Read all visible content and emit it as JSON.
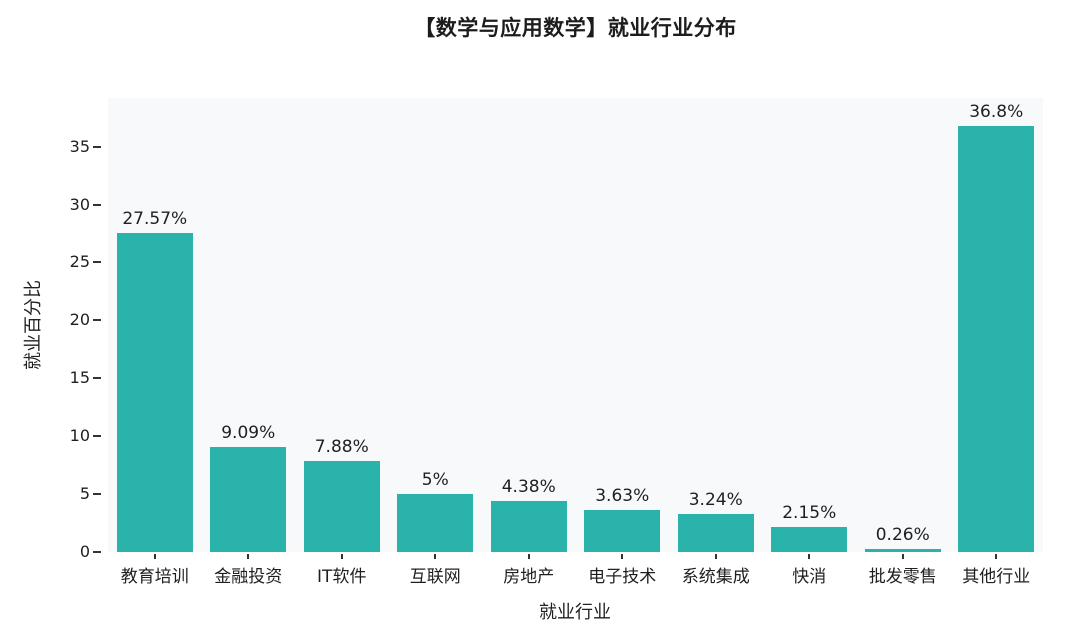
{
  "title": "【数学与应用数学】就业行业分布",
  "chart_data": {
    "type": "bar",
    "title": "【数学与应用数学】就业行业分布",
    "xlabel": "就业行业",
    "ylabel": "就业百分比",
    "categories": [
      "教育培训",
      "金融投资",
      "IT软件",
      "互联网",
      "房地产",
      "电子技术",
      "系统集成",
      "快消",
      "批发零售",
      "其他行业"
    ],
    "values": [
      27.57,
      9.09,
      7.88,
      5,
      4.38,
      3.63,
      3.24,
      2.15,
      0.26,
      36.8
    ],
    "value_labels": [
      "27.57%",
      "9.09%",
      "7.88%",
      "5%",
      "4.38%",
      "3.63%",
      "3.24%",
      "2.15%",
      "0.26%",
      "36.8%"
    ],
    "yticks": [
      0,
      5,
      10,
      15,
      20,
      25,
      30,
      35
    ],
    "ylim": [
      0,
      39.2
    ],
    "grid": false,
    "legend": "none",
    "bar_color": "#2ab3ab",
    "plot_bg": "#f8f9fa",
    "text_color": "#1f1f1f"
  }
}
